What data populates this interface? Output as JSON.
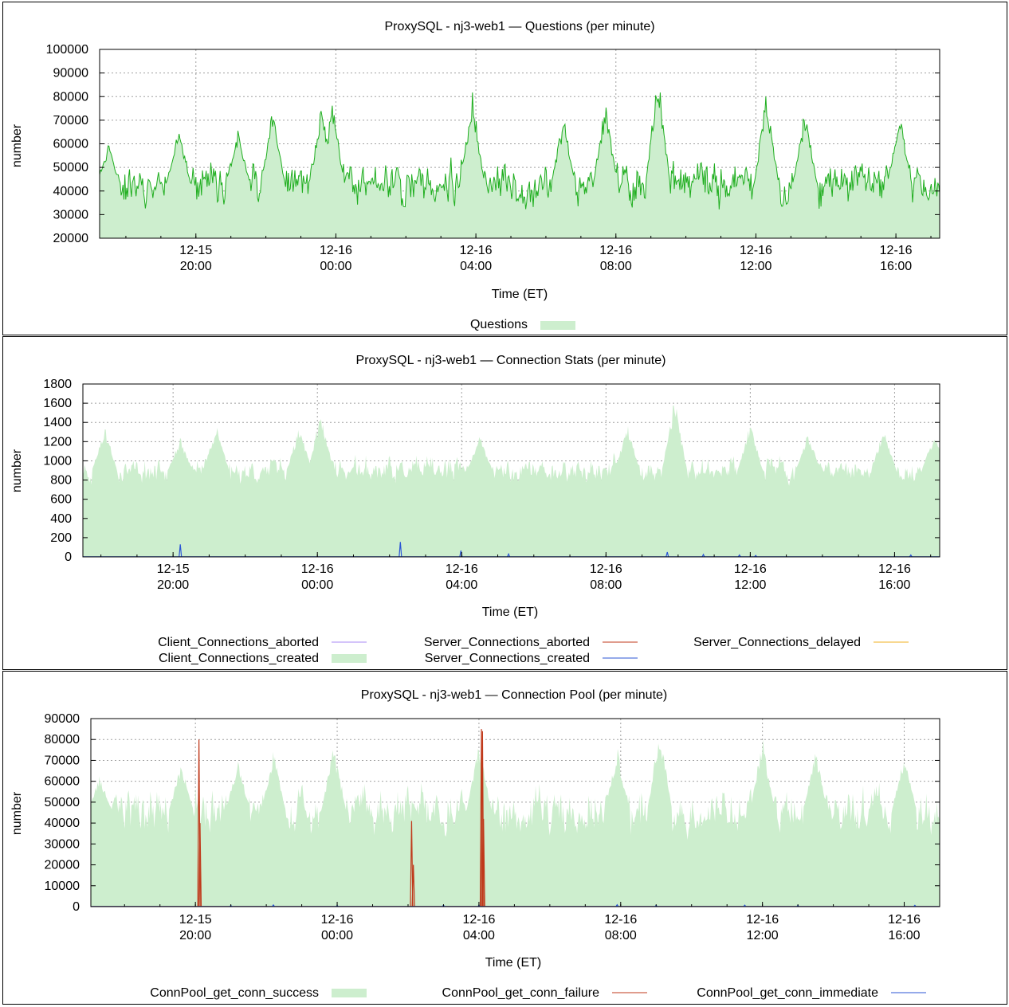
{
  "charts": [
    {
      "id": "questions",
      "chart_data": {
        "type": "area",
        "title": "ProxySQL - nj3-web1 — Questions (per minute)",
        "xlabel": "Time (ET)",
        "ylabel": "number",
        "ylim": [
          20000,
          100000
        ],
        "yticks": [
          20000,
          30000,
          40000,
          50000,
          60000,
          70000,
          80000,
          90000,
          100000
        ],
        "xlim_hours": [
          17.25,
          41.25
        ],
        "xticks": [
          {
            "h": 20,
            "date": "12-15",
            "time": "20:00"
          },
          {
            "h": 24,
            "date": "12-16",
            "time": "00:00"
          },
          {
            "h": 28,
            "date": "12-16",
            "time": "04:00"
          },
          {
            "h": 32,
            "date": "12-16",
            "time": "08:00"
          },
          {
            "h": 36,
            "date": "12-16",
            "time": "12:00"
          },
          {
            "h": 40,
            "date": "12-16",
            "time": "16:00"
          }
        ],
        "grid": true,
        "legend_position": "bottom",
        "series": [
          {
            "name": "Questions",
            "style": "area",
            "color": "#cdeece",
            "line_color": "#1fae1f",
            "generator": {
              "base": 43000,
              "noise": 9000,
              "seed": 11,
              "spikes": [
                [
                  17.5,
                  60000
                ],
                [
                  19.5,
                  68000
                ],
                [
                  21.2,
                  66000
                ],
                [
                  22.2,
                  76000
                ],
                [
                  23.6,
                  78000
                ],
                [
                  23.9,
                  79000
                ],
                [
                  27.9,
                  82000
                ],
                [
                  30.5,
                  72000
                ],
                [
                  31.7,
                  79000
                ],
                [
                  33.2,
                  92000
                ],
                [
                  36.3,
                  83000
                ],
                [
                  37.4,
                  75000
                ],
                [
                  40.1,
                  74000
                ]
              ]
            },
            "values_hourly": [
              {
                "t": "20:00",
                "v": 42000
              },
              {
                "t": "00:00",
                "v": 50000
              },
              {
                "t": "04:00",
                "v": 45000
              },
              {
                "t": "08:00",
                "v": 47000
              },
              {
                "t": "12:00",
                "v": 46000
              },
              {
                "t": "16:00",
                "v": 45000
              }
            ]
          }
        ]
      }
    },
    {
      "id": "connstats",
      "chart_data": {
        "type": "area",
        "title": "ProxySQL - nj3-web1 — Connection Stats (per minute)",
        "xlabel": "Time (ET)",
        "ylabel": "number",
        "ylim": [
          0,
          1800
        ],
        "yticks": [
          0,
          200,
          400,
          600,
          800,
          1000,
          1200,
          1400,
          1600,
          1800
        ],
        "xlim_hours": [
          17.5,
          41.25
        ],
        "xticks": [
          {
            "h": 20,
            "date": "12-15",
            "time": "20:00"
          },
          {
            "h": 24,
            "date": "12-16",
            "time": "00:00"
          },
          {
            "h": 28,
            "date": "12-16",
            "time": "04:00"
          },
          {
            "h": 32,
            "date": "12-16",
            "time": "08:00"
          },
          {
            "h": 36,
            "date": "12-16",
            "time": "12:00"
          },
          {
            "h": 40,
            "date": "12-16",
            "time": "16:00"
          }
        ],
        "grid": true,
        "legend_position": "bottom",
        "series": [
          {
            "name": "Client_Connections_aborted",
            "style": "line",
            "color": "#a98af5",
            "points": []
          },
          {
            "name": "Client_Connections_created",
            "style": "area",
            "color": "#cdeece",
            "generator": {
              "base": 900,
              "noise": 130,
              "seed": 23,
              "spikes": [
                [
                  18.1,
                  1380
                ],
                [
                  20.2,
                  1250
                ],
                [
                  21.2,
                  1400
                ],
                [
                  23.5,
                  1380
                ],
                [
                  24.1,
                  1550
                ],
                [
                  28.5,
                  1280
                ],
                [
                  32.6,
                  1400
                ],
                [
                  33.9,
                  1680
                ],
                [
                  36.0,
                  1410
                ],
                [
                  37.6,
                  1300
                ],
                [
                  39.7,
                  1350
                ],
                [
                  41.1,
                  1300
                ]
              ]
            }
          },
          {
            "name": "Server_Connections_aborted",
            "style": "line",
            "color": "#c0391b",
            "points": []
          },
          {
            "name": "Server_Connections_created",
            "style": "line",
            "color": "#2b55d6",
            "points": [
              [
                20.2,
                130
              ],
              [
                26.3,
                155
              ],
              [
                27.98,
                65
              ],
              [
                29.3,
                30
              ],
              [
                33.7,
                50
              ],
              [
                34.7,
                25
              ],
              [
                35.7,
                20
              ],
              [
                36.15,
                15
              ],
              [
                40.45,
                20
              ]
            ]
          },
          {
            "name": "Server_Connections_delayed",
            "style": "line",
            "color": "#f0b020",
            "points": []
          }
        ]
      }
    },
    {
      "id": "connpool",
      "chart_data": {
        "type": "area",
        "title": "ProxySQL - nj3-web1 — Connection Pool (per minute)",
        "xlabel": "Time (ET)",
        "ylabel": "number",
        "ylim": [
          0,
          90000
        ],
        "yticks": [
          0,
          10000,
          20000,
          30000,
          40000,
          50000,
          60000,
          70000,
          80000,
          90000
        ],
        "xlim_hours": [
          17.05,
          41.0
        ],
        "xticks": [
          {
            "h": 20,
            "date": "12-15",
            "time": "20:00"
          },
          {
            "h": 24,
            "date": "12-16",
            "time": "00:00"
          },
          {
            "h": 28,
            "date": "12-16",
            "time": "04:00"
          },
          {
            "h": 32,
            "date": "12-16",
            "time": "08:00"
          },
          {
            "h": 36,
            "date": "12-16",
            "time": "12:00"
          },
          {
            "h": 40,
            "date": "12-16",
            "time": "16:00"
          }
        ],
        "grid": true,
        "legend_position": "bottom",
        "series": [
          {
            "name": "ConnPool_get_conn_success",
            "style": "area",
            "color": "#cdeece",
            "generator": {
              "base": 46000,
              "noise": 11000,
              "seed": 37,
              "spikes": [
                [
                  17.3,
                  63000
                ],
                [
                  19.6,
                  69000
                ],
                [
                  21.2,
                  70000
                ],
                [
                  22.2,
                  76000
                ],
                [
                  23.9,
                  78000
                ],
                [
                  28.0,
                  80000
                ],
                [
                  31.9,
                  77000
                ],
                [
                  33.1,
                  88000
                ],
                [
                  36.0,
                  82000
                ],
                [
                  37.5,
                  76000
                ],
                [
                  40.0,
                  74000
                ]
              ]
            }
          },
          {
            "name": "ConnPool_get_conn_failure",
            "style": "line",
            "color": "#c0391b",
            "points": [
              [
                20.1,
                80000
              ],
              [
                20.13,
                40000
              ],
              [
                26.1,
                41000
              ],
              [
                26.15,
                20000
              ],
              [
                28.07,
                85000
              ],
              [
                28.1,
                84000
              ],
              [
                28.13,
                42000
              ]
            ]
          },
          {
            "name": "ConnPool_get_conn_immediate",
            "style": "line",
            "color": "#2b55d6",
            "points": [
              [
                21.0,
                500
              ],
              [
                22.2,
                800
              ],
              [
                24.0,
                500
              ],
              [
                27.0,
                700
              ],
              [
                28.0,
                600
              ],
              [
                31.9,
                900
              ],
              [
                33.0,
                600
              ],
              [
                35.5,
                700
              ],
              [
                37.0,
                600
              ],
              [
                40.3,
                600
              ]
            ]
          }
        ]
      }
    }
  ]
}
